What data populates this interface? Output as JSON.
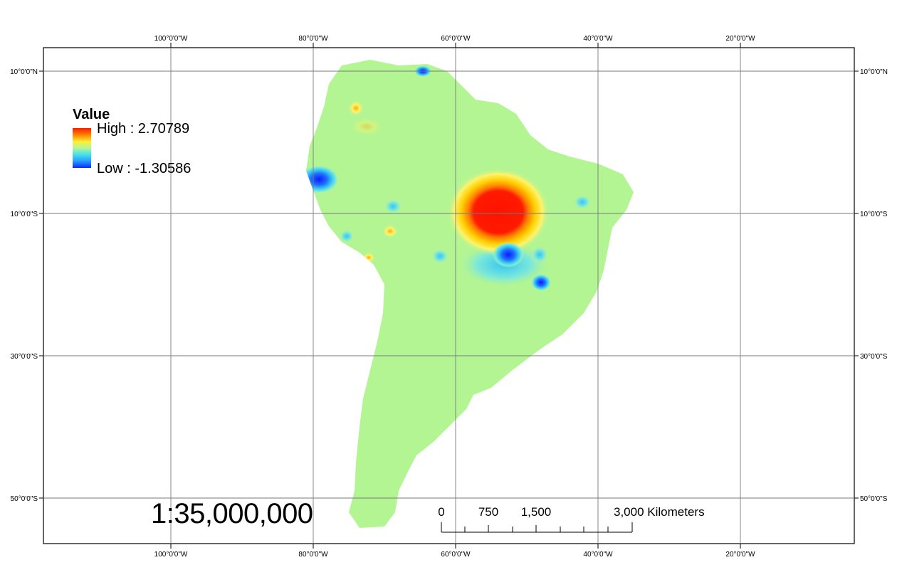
{
  "graticule": {
    "top_labels": [
      "100°0'0\"W",
      "80°0'0\"W",
      "60°0'0\"W",
      "40°0'0\"W",
      "20°0'0\"W"
    ],
    "bottom_labels": [
      "100°0'0\"W",
      "80°0'0\"W",
      "60°0'0\"W",
      "40°0'0\"W",
      "20°0'0\"W"
    ],
    "left_labels": [
      "10°0'0\"N",
      "10°0'0\"S",
      "30°0'0\"S",
      "50°0'0\"S"
    ],
    "right_labels": [
      "10°0'0\"N",
      "10°0'0\"S",
      "30°0'0\"S",
      "50°0'0\"S"
    ]
  },
  "legend": {
    "title": "Value",
    "high_label": "High : 2.70789",
    "low_label": "Low : -1.30586",
    "high_value": 2.70789,
    "low_value": -1.30586,
    "ramp_colors": [
      "#ff1a00",
      "#ff8a00",
      "#ffee33",
      "#b6f59a",
      "#46e3e8",
      "#2aa0ff",
      "#0a2cff"
    ]
  },
  "scale": {
    "ratio_text": "1:35,000,000",
    "bar_labels": [
      "0",
      "750",
      "1,500",
      "3,000 Kilometers"
    ]
  },
  "colors": {
    "land_background": "#b3f593",
    "hotspot_high": "#ff1a00",
    "hotspot_low": "#0a2cff"
  }
}
